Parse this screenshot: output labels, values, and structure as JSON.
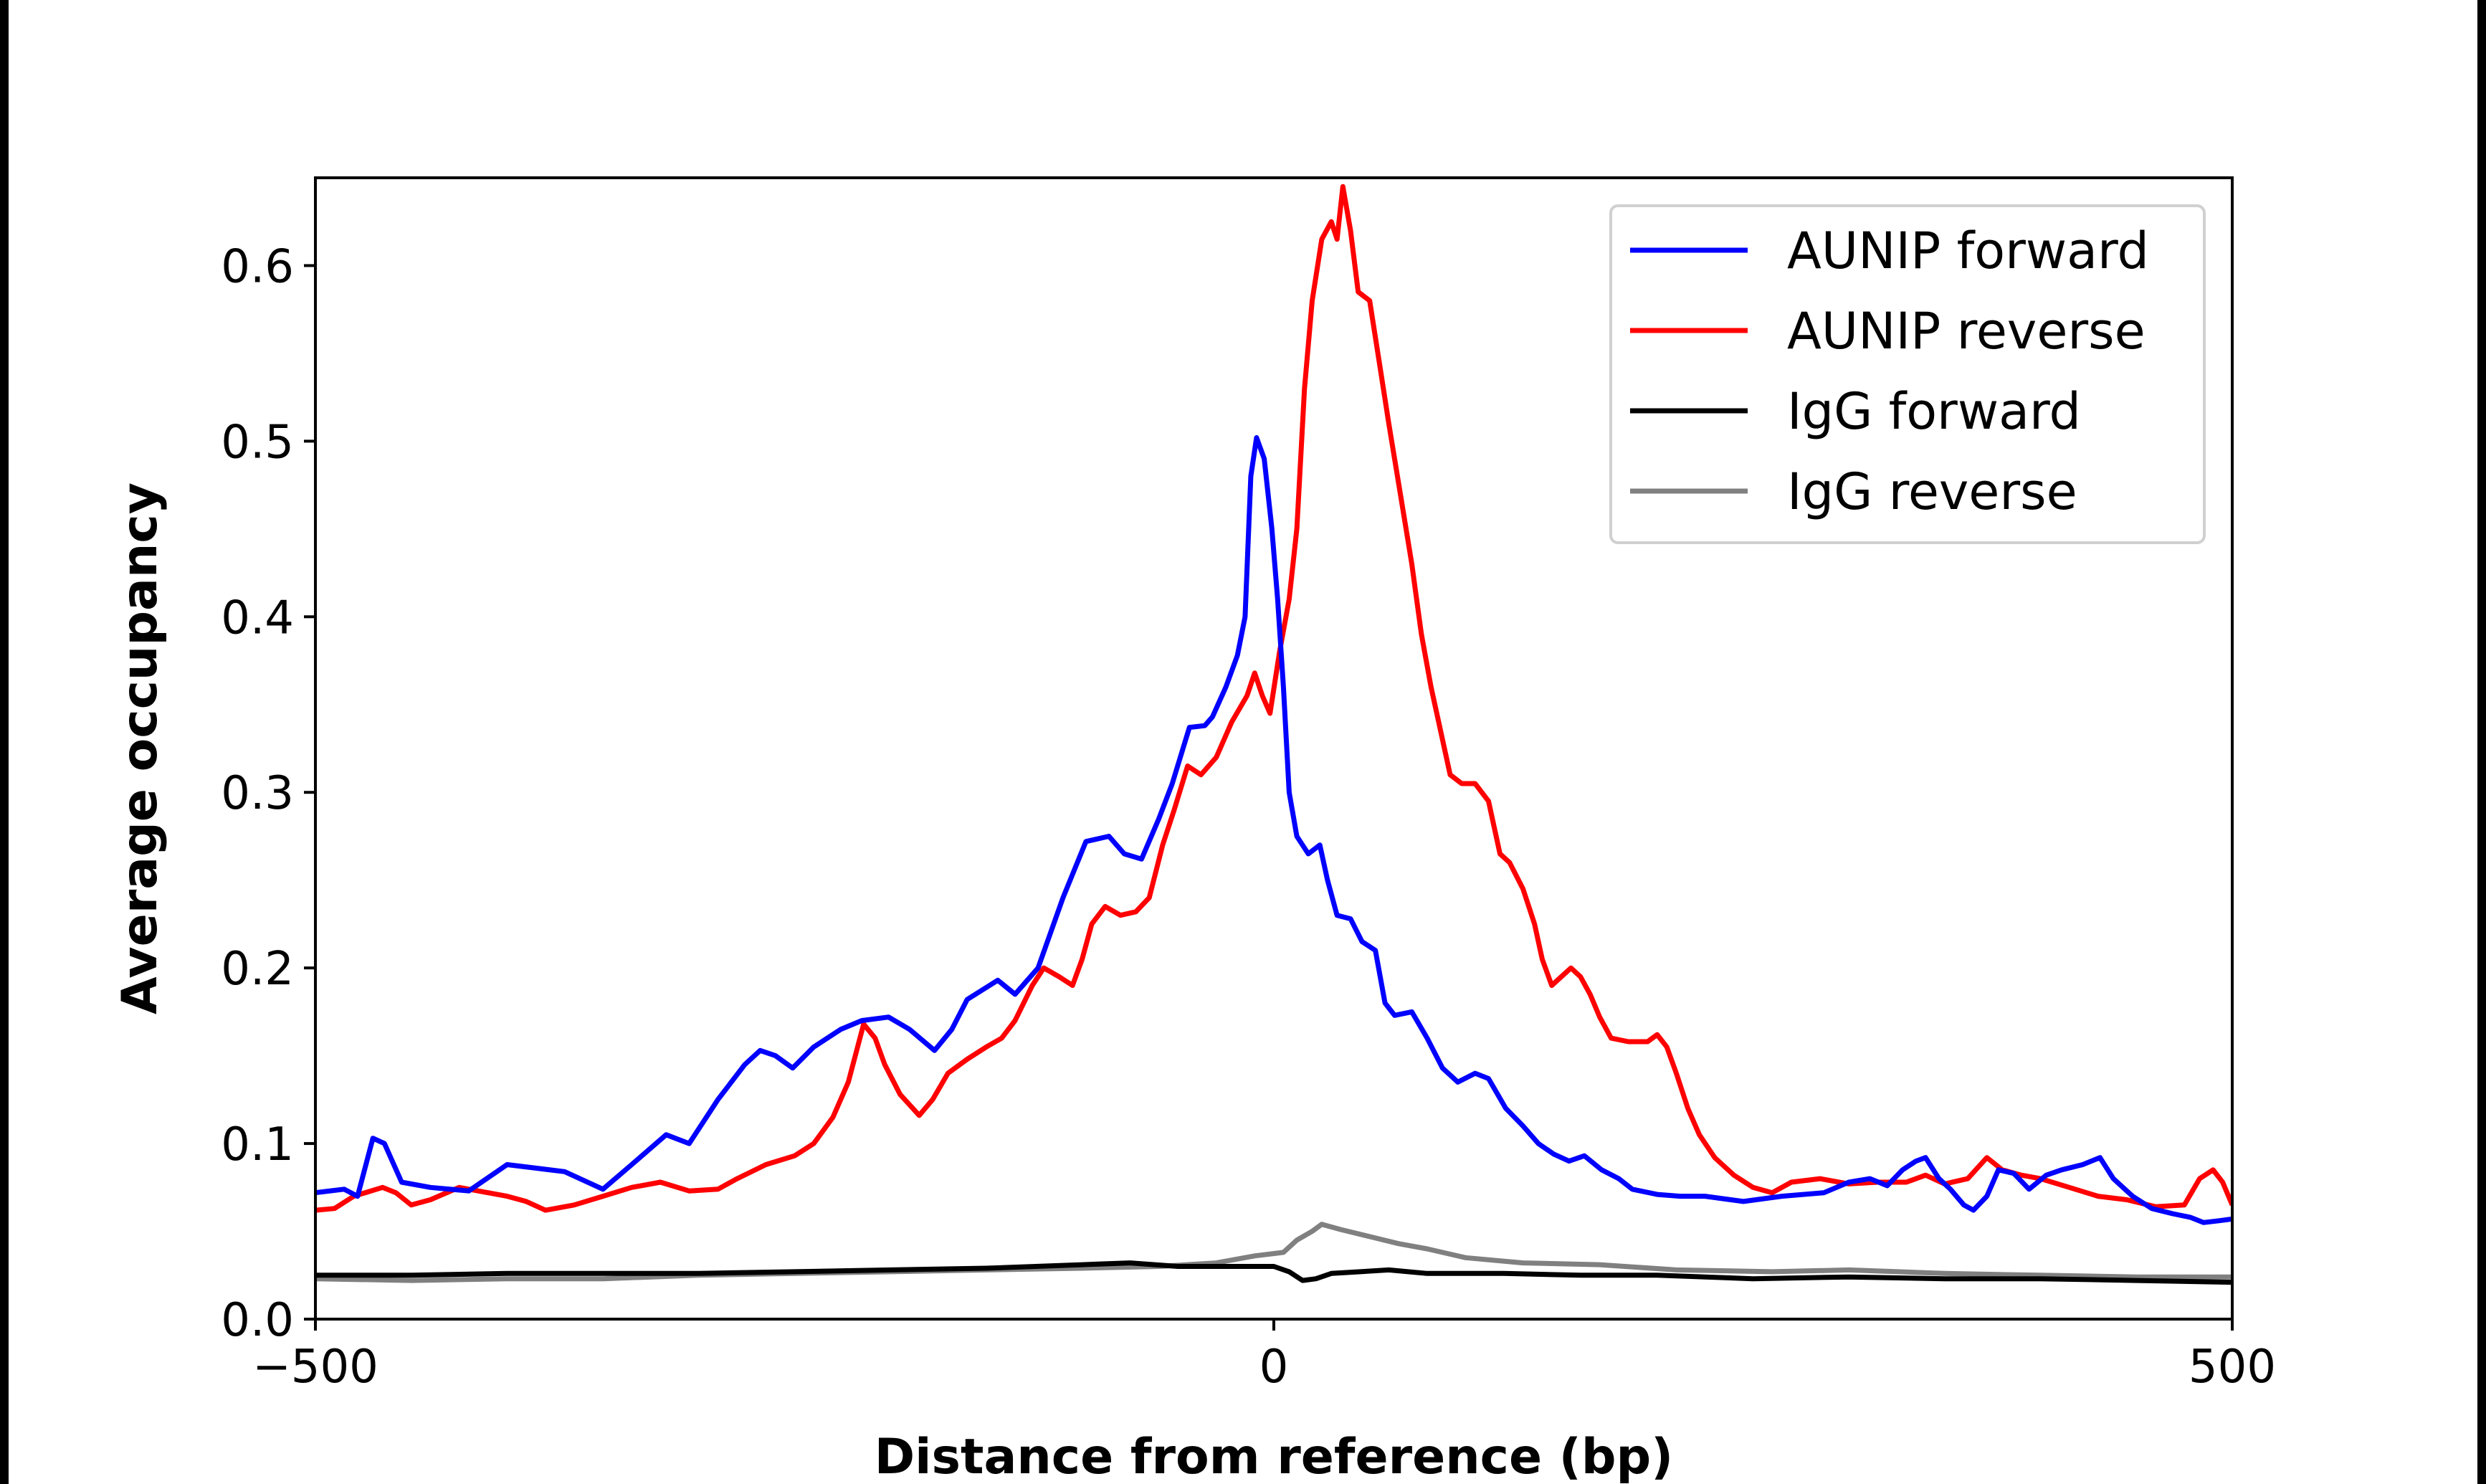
{
  "chart_data": {
    "type": "line",
    "title": "",
    "xlabel": "Distance from reference (bp)",
    "ylabel": "Average occupancy",
    "xlim": [
      -500,
      500
    ],
    "ylim": [
      0,
      0.65
    ],
    "xticks": [
      -500,
      0,
      500
    ],
    "xtick_labels": [
      "−500",
      "0",
      "500"
    ],
    "yticks": [
      0.0,
      0.1,
      0.2,
      0.3,
      0.4,
      0.5,
      0.6
    ],
    "ytick_labels": [
      "0.0",
      "0.1",
      "0.2",
      "0.3",
      "0.4",
      "0.5",
      "0.6"
    ],
    "grid": false,
    "legend_position": "top-right",
    "series": [
      {
        "name": "AUNIP forward",
        "color": "#0000ff",
        "points": [
          [
            -500,
            0.072
          ],
          [
            -485,
            0.074
          ],
          [
            -478,
            0.07
          ],
          [
            -470,
            0.103
          ],
          [
            -464,
            0.1
          ],
          [
            -455,
            0.078
          ],
          [
            -440,
            0.075
          ],
          [
            -420,
            0.073
          ],
          [
            -400,
            0.088
          ],
          [
            -385,
            0.086
          ],
          [
            -370,
            0.084
          ],
          [
            -350,
            0.074
          ],
          [
            -335,
            0.088
          ],
          [
            -317,
            0.105
          ],
          [
            -305,
            0.1
          ],
          [
            -290,
            0.125
          ],
          [
            -276,
            0.145
          ],
          [
            -268,
            0.153
          ],
          [
            -260,
            0.15
          ],
          [
            -251,
            0.143
          ],
          [
            -240,
            0.155
          ],
          [
            -226,
            0.165
          ],
          [
            -215,
            0.17
          ],
          [
            -201,
            0.172
          ],
          [
            -190,
            0.165
          ],
          [
            -177,
            0.153
          ],
          [
            -168,
            0.165
          ],
          [
            -160,
            0.182
          ],
          [
            -144,
            0.193
          ],
          [
            -135,
            0.185
          ],
          [
            -123,
            0.2
          ],
          [
            -110,
            0.24
          ],
          [
            -98,
            0.272
          ],
          [
            -86,
            0.275
          ],
          [
            -78,
            0.265
          ],
          [
            -69,
            0.262
          ],
          [
            -60,
            0.285
          ],
          [
            -53,
            0.305
          ],
          [
            -44,
            0.337
          ],
          [
            -36,
            0.338
          ],
          [
            -32,
            0.343
          ],
          [
            -25,
            0.36
          ],
          [
            -19,
            0.378
          ],
          [
            -15,
            0.4
          ],
          [
            -12,
            0.48
          ],
          [
            -9,
            0.502
          ],
          [
            -5,
            0.49
          ],
          [
            -1,
            0.45
          ],
          [
            2,
            0.41
          ],
          [
            5,
            0.36
          ],
          [
            8,
            0.3
          ],
          [
            12,
            0.275
          ],
          [
            18,
            0.265
          ],
          [
            24,
            0.27
          ],
          [
            28,
            0.25
          ],
          [
            33,
            0.23
          ],
          [
            40,
            0.228
          ],
          [
            46,
            0.215
          ],
          [
            53,
            0.21
          ],
          [
            58,
            0.18
          ],
          [
            63,
            0.173
          ],
          [
            72,
            0.175
          ],
          [
            80,
            0.16
          ],
          [
            88,
            0.143
          ],
          [
            96,
            0.135
          ],
          [
            105,
            0.14
          ],
          [
            112,
            0.137
          ],
          [
            121,
            0.12
          ],
          [
            130,
            0.11
          ],
          [
            138,
            0.1
          ],
          [
            146,
            0.094
          ],
          [
            154,
            0.09
          ],
          [
            162,
            0.093
          ],
          [
            171,
            0.085
          ],
          [
            180,
            0.08
          ],
          [
            187,
            0.074
          ],
          [
            200,
            0.071
          ],
          [
            212,
            0.07
          ],
          [
            225,
            0.07
          ],
          [
            245,
            0.067
          ],
          [
            265,
            0.07
          ],
          [
            287,
            0.072
          ],
          [
            300,
            0.078
          ],
          [
            311,
            0.08
          ],
          [
            320,
            0.076
          ],
          [
            328,
            0.085
          ],
          [
            335,
            0.09
          ],
          [
            340,
            0.092
          ],
          [
            347,
            0.08
          ],
          [
            353,
            0.074
          ],
          [
            360,
            0.065
          ],
          [
            365,
            0.062
          ],
          [
            372,
            0.07
          ],
          [
            378,
            0.085
          ],
          [
            386,
            0.083
          ],
          [
            394,
            0.074
          ],
          [
            403,
            0.082
          ],
          [
            411,
            0.085
          ],
          [
            422,
            0.088
          ],
          [
            431,
            0.092
          ],
          [
            438,
            0.08
          ],
          [
            448,
            0.07
          ],
          [
            458,
            0.063
          ],
          [
            469,
            0.06
          ],
          [
            478,
            0.058
          ],
          [
            485,
            0.055
          ],
          [
            493,
            0.056
          ],
          [
            500,
            0.057
          ]
        ]
      },
      {
        "name": "AUNIP reverse",
        "color": "#ff0000",
        "points": [
          [
            -500,
            0.062
          ],
          [
            -490,
            0.063
          ],
          [
            -480,
            0.07
          ],
          [
            -465,
            0.075
          ],
          [
            -458,
            0.072
          ],
          [
            -450,
            0.065
          ],
          [
            -440,
            0.068
          ],
          [
            -425,
            0.075
          ],
          [
            -410,
            0.072
          ],
          [
            -400,
            0.07
          ],
          [
            -390,
            0.067
          ],
          [
            -380,
            0.062
          ],
          [
            -365,
            0.065
          ],
          [
            -350,
            0.07
          ],
          [
            -335,
            0.075
          ],
          [
            -320,
            0.078
          ],
          [
            -305,
            0.073
          ],
          [
            -290,
            0.074
          ],
          [
            -280,
            0.08
          ],
          [
            -265,
            0.088
          ],
          [
            -250,
            0.093
          ],
          [
            -240,
            0.1
          ],
          [
            -230,
            0.115
          ],
          [
            -222,
            0.135
          ],
          [
            -214,
            0.168
          ],
          [
            -208,
            0.16
          ],
          [
            -203,
            0.145
          ],
          [
            -195,
            0.128
          ],
          [
            -185,
            0.116
          ],
          [
            -178,
            0.125
          ],
          [
            -170,
            0.14
          ],
          [
            -160,
            0.148
          ],
          [
            -150,
            0.155
          ],
          [
            -142,
            0.16
          ],
          [
            -135,
            0.17
          ],
          [
            -126,
            0.19
          ],
          [
            -120,
            0.2
          ],
          [
            -112,
            0.195
          ],
          [
            -105,
            0.19
          ],
          [
            -100,
            0.205
          ],
          [
            -95,
            0.225
          ],
          [
            -88,
            0.235
          ],
          [
            -80,
            0.23
          ],
          [
            -72,
            0.232
          ],
          [
            -65,
            0.24
          ],
          [
            -58,
            0.27
          ],
          [
            -52,
            0.29
          ],
          [
            -45,
            0.315
          ],
          [
            -38,
            0.31
          ],
          [
            -30,
            0.32
          ],
          [
            -22,
            0.34
          ],
          [
            -14,
            0.355
          ],
          [
            -10,
            0.368
          ],
          [
            -6,
            0.355
          ],
          [
            -2,
            0.345
          ],
          [
            3,
            0.38
          ],
          [
            8,
            0.41
          ],
          [
            12,
            0.45
          ],
          [
            16,
            0.53
          ],
          [
            20,
            0.58
          ],
          [
            25,
            0.615
          ],
          [
            30,
            0.625
          ],
          [
            33,
            0.615
          ],
          [
            36,
            0.645
          ],
          [
            40,
            0.62
          ],
          [
            44,
            0.585
          ],
          [
            50,
            0.58
          ],
          [
            55,
            0.545
          ],
          [
            60,
            0.51
          ],
          [
            66,
            0.47
          ],
          [
            72,
            0.43
          ],
          [
            77,
            0.39
          ],
          [
            82,
            0.36
          ],
          [
            86,
            0.34
          ],
          [
            92,
            0.31
          ],
          [
            98,
            0.305
          ],
          [
            105,
            0.305
          ],
          [
            112,
            0.295
          ],
          [
            118,
            0.265
          ],
          [
            123,
            0.26
          ],
          [
            130,
            0.245
          ],
          [
            136,
            0.225
          ],
          [
            140,
            0.205
          ],
          [
            145,
            0.19
          ],
          [
            150,
            0.195
          ],
          [
            155,
            0.2
          ],
          [
            160,
            0.195
          ],
          [
            165,
            0.185
          ],
          [
            170,
            0.172
          ],
          [
            176,
            0.16
          ],
          [
            185,
            0.158
          ],
          [
            195,
            0.158
          ],
          [
            200,
            0.162
          ],
          [
            205,
            0.155
          ],
          [
            210,
            0.14
          ],
          [
            216,
            0.12
          ],
          [
            222,
            0.105
          ],
          [
            230,
            0.092
          ],
          [
            240,
            0.082
          ],
          [
            250,
            0.075
          ],
          [
            260,
            0.072
          ],
          [
            270,
            0.078
          ],
          [
            285,
            0.08
          ],
          [
            300,
            0.077
          ],
          [
            315,
            0.078
          ],
          [
            330,
            0.078
          ],
          [
            340,
            0.082
          ],
          [
            350,
            0.077
          ],
          [
            362,
            0.08
          ],
          [
            372,
            0.092
          ],
          [
            380,
            0.085
          ],
          [
            390,
            0.082
          ],
          [
            400,
            0.08
          ],
          [
            415,
            0.075
          ],
          [
            430,
            0.07
          ],
          [
            445,
            0.068
          ],
          [
            460,
            0.064
          ],
          [
            475,
            0.065
          ],
          [
            483,
            0.08
          ],
          [
            490,
            0.085
          ],
          [
            495,
            0.078
          ],
          [
            500,
            0.065
          ]
        ]
      },
      {
        "name": "IgG forward",
        "color": "#000000",
        "points": [
          [
            -500,
            0.025
          ],
          [
            -450,
            0.025
          ],
          [
            -400,
            0.026
          ],
          [
            -350,
            0.026
          ],
          [
            -300,
            0.026
          ],
          [
            -250,
            0.027
          ],
          [
            -200,
            0.028
          ],
          [
            -150,
            0.029
          ],
          [
            -100,
            0.031
          ],
          [
            -75,
            0.032
          ],
          [
            -50,
            0.03
          ],
          [
            -25,
            0.03
          ],
          [
            0,
            0.03
          ],
          [
            8,
            0.027
          ],
          [
            15,
            0.022
          ],
          [
            22,
            0.023
          ],
          [
            30,
            0.026
          ],
          [
            45,
            0.027
          ],
          [
            60,
            0.028
          ],
          [
            80,
            0.026
          ],
          [
            120,
            0.026
          ],
          [
            160,
            0.025
          ],
          [
            200,
            0.025
          ],
          [
            250,
            0.023
          ],
          [
            300,
            0.024
          ],
          [
            350,
            0.023
          ],
          [
            400,
            0.023
          ],
          [
            450,
            0.022
          ],
          [
            500,
            0.021
          ]
        ]
      },
      {
        "name": "IgG reverse",
        "color": "#808080",
        "points": [
          [
            -500,
            0.023
          ],
          [
            -450,
            0.022
          ],
          [
            -400,
            0.023
          ],
          [
            -350,
            0.023
          ],
          [
            -300,
            0.025
          ],
          [
            -250,
            0.026
          ],
          [
            -200,
            0.027
          ],
          [
            -150,
            0.028
          ],
          [
            -100,
            0.029
          ],
          [
            -60,
            0.03
          ],
          [
            -30,
            0.032
          ],
          [
            -10,
            0.036
          ],
          [
            5,
            0.038
          ],
          [
            12,
            0.045
          ],
          [
            20,
            0.05
          ],
          [
            25,
            0.054
          ],
          [
            35,
            0.051
          ],
          [
            50,
            0.047
          ],
          [
            65,
            0.043
          ],
          [
            80,
            0.04
          ],
          [
            100,
            0.035
          ],
          [
            130,
            0.032
          ],
          [
            170,
            0.031
          ],
          [
            210,
            0.028
          ],
          [
            260,
            0.027
          ],
          [
            300,
            0.028
          ],
          [
            350,
            0.026
          ],
          [
            400,
            0.025
          ],
          [
            450,
            0.024
          ],
          [
            500,
            0.024
          ]
        ]
      }
    ]
  }
}
